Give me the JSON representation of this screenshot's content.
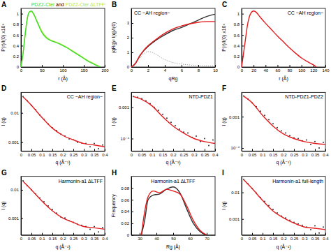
{
  "chart_data": [
    {
      "type": "line",
      "label": "A",
      "x_label": "r (Å)",
      "y_label": "P(r)/I(0) x10³",
      "legend_join": "and",
      "xlim": [
        0,
        200
      ],
      "xticks": [
        0,
        50,
        100,
        150,
        200
      ],
      "ylim": [
        0,
        1.1
      ],
      "yticks": [
        0,
        0.2,
        0.4,
        0.6,
        0.8,
        1
      ],
      "series": [
        {
          "name": "PDZ2-Cter ΔLTFF",
          "color": "#b5e84a",
          "type": "line",
          "x": [
            0,
            5,
            10,
            15,
            20,
            25,
            30,
            40,
            50,
            60,
            70,
            80,
            90,
            100,
            110,
            120,
            130,
            140,
            150,
            160,
            170,
            180,
            190
          ],
          "values": [
            0,
            0.26,
            0.62,
            0.91,
            1.03,
            1.04,
            0.99,
            0.83,
            0.67,
            0.57,
            0.51,
            0.48,
            0.45,
            0.41,
            0.37,
            0.32,
            0.27,
            0.22,
            0.17,
            0.12,
            0.08,
            0.04,
            0
          ]
        },
        {
          "name": "PDZ2-Cter",
          "color": "#3cdc28",
          "type": "line",
          "x": [
            0,
            5,
            10,
            15,
            20,
            25,
            30,
            40,
            50,
            60,
            70,
            80,
            90,
            100,
            110,
            120,
            130,
            140,
            150,
            160,
            170,
            180,
            190
          ],
          "values": [
            0,
            0.25,
            0.6,
            0.9,
            1.03,
            1.05,
            1.0,
            0.82,
            0.65,
            0.55,
            0.5,
            0.47,
            0.44,
            0.4,
            0.36,
            0.31,
            0.26,
            0.21,
            0.16,
            0.11,
            0.07,
            0.03,
            0
          ]
        }
      ]
    },
    {
      "type": "line",
      "label": "B",
      "title": "CC ~AH region~",
      "x_label": "qRg",
      "y_label": "(qRg)² I(q)/I(0)",
      "xlim": [
        0,
        10
      ],
      "xticks": [
        0,
        2,
        4,
        6,
        8,
        10
      ],
      "ylim": [
        0,
        4
      ],
      "yticks": [
        0,
        1,
        2,
        3
      ],
      "series": [
        {
          "color": "#999999",
          "type": "line",
          "line_style": "dotted",
          "x": [
            0,
            0.5,
            1,
            1.5,
            2,
            2.5,
            3,
            4,
            5,
            6,
            7,
            8,
            9,
            10
          ],
          "values": [
            0,
            0.22,
            0.6,
            0.9,
            1.05,
            1.0,
            0.85,
            0.5,
            0.3,
            0.2,
            0.14,
            0.1,
            0.08,
            0.07
          ]
        },
        {
          "color": "#333333",
          "type": "line",
          "x": [
            0,
            0.5,
            1,
            1.5,
            2,
            3,
            4,
            5,
            6,
            7,
            8,
            9,
            10
          ],
          "values": [
            0,
            0.25,
            0.75,
            1.12,
            1.4,
            1.85,
            2.2,
            2.5,
            2.7,
            2.95,
            3.2,
            3.45,
            3.6
          ]
        },
        {
          "color": "#e41a1c",
          "type": "line",
          "x": [
            0,
            0.5,
            1,
            1.5,
            2,
            3,
            4,
            5,
            6,
            7,
            8,
            9,
            10
          ],
          "values": [
            0,
            0.25,
            0.75,
            1.15,
            1.45,
            1.9,
            2.3,
            2.6,
            2.8,
            2.95,
            3.05,
            3.1,
            3.1
          ]
        }
      ]
    },
    {
      "type": "line",
      "label": "C",
      "title": "CC ~AH region~",
      "x_label": "r (Å)",
      "y_label": "P(r)/I(0) x10³",
      "xlim": [
        0,
        140
      ],
      "xticks": [
        0,
        20,
        40,
        60,
        80,
        100,
        120,
        140
      ],
      "ylim": [
        0,
        1.1
      ],
      "yticks": [
        0,
        0.2,
        0.4,
        0.6,
        0.8,
        1
      ],
      "series": [
        {
          "color": "#e41a1c",
          "type": "line",
          "x": [
            0,
            5,
            10,
            15,
            20,
            25,
            30,
            40,
            50,
            60,
            70,
            80,
            90,
            100,
            110,
            120,
            125
          ],
          "values": [
            0,
            0.4,
            0.8,
            1.0,
            1.05,
            1.02,
            0.95,
            0.82,
            0.7,
            0.58,
            0.47,
            0.36,
            0.26,
            0.17,
            0.1,
            0.04,
            0
          ]
        }
      ]
    },
    {
      "type": "scatter",
      "label": "D",
      "title": "CC ~AH region~",
      "x_label": "q (Å⁻¹)",
      "y_label": "I (q)",
      "log": "y",
      "xlim": [
        0,
        0.4
      ],
      "xticks": [
        0,
        0.05,
        0.1,
        0.15,
        0.2,
        0.25,
        0.3,
        0.35,
        0.4
      ],
      "ylim": [
        0.0005,
        0.05
      ],
      "yticks": [
        0.001,
        0.01
      ],
      "series": [
        {
          "color": "#333333",
          "type": "scatter",
          "marker": "circle",
          "x": [
            0.01,
            0.03,
            0.05,
            0.07,
            0.09,
            0.11,
            0.13,
            0.15,
            0.17,
            0.19,
            0.21,
            0.23,
            0.25,
            0.27,
            0.29,
            0.31,
            0.33,
            0.35,
            0.37,
            0.39
          ],
          "values": [
            0.036,
            0.026,
            0.018,
            0.013,
            0.0085,
            0.006,
            0.0042,
            0.0031,
            0.0025,
            0.0019,
            0.0016,
            0.0013,
            0.0012,
            0.001,
            0.00095,
            0.0009,
            0.0007,
            0.0009,
            0.0006,
            0.0008
          ]
        },
        {
          "color": "#e41a1c",
          "type": "line",
          "x": [
            0.01,
            0.05,
            0.1,
            0.15,
            0.2,
            0.25,
            0.3,
            0.35,
            0.4
          ],
          "values": [
            0.035,
            0.018,
            0.007,
            0.003,
            0.0017,
            0.0012,
            0.0009,
            0.0008,
            0.0007
          ]
        }
      ]
    },
    {
      "type": "scatter",
      "label": "E",
      "title": "NTD-PDZ1",
      "x_label": "q (Å⁻¹)",
      "y_label": "I (q)",
      "log": "y",
      "xlim": [
        0,
        0.4
      ],
      "xticks": [
        0,
        0.05,
        0.1,
        0.15,
        0.2,
        0.25,
        0.3,
        0.35,
        0.4
      ],
      "ylim": [
        4e-05,
        0.003
      ],
      "yticks": [
        {
          "value": 0.0001,
          "label": "10⁻⁴"
        },
        0.001
      ],
      "series": [
        {
          "color": "#333333",
          "type": "scatter",
          "marker": "circle",
          "x": [
            0.01,
            0.03,
            0.05,
            0.07,
            0.09,
            0.11,
            0.13,
            0.15,
            0.17,
            0.19,
            0.21,
            0.23,
            0.25,
            0.27,
            0.29,
            0.31,
            0.33,
            0.35,
            0.37,
            0.39
          ],
          "values": [
            0.0022,
            0.0021,
            0.0019,
            0.0016,
            0.0013,
            0.001,
            0.0008,
            0.0006,
            0.00045,
            0.00033,
            0.00026,
            0.0002,
            0.00016,
            0.00015,
            0.00011,
            0.00012,
            8e-05,
            0.0001,
            6e-05,
            9e-05
          ]
        },
        {
          "color": "#e41a1c",
          "type": "line",
          "x": [
            0.01,
            0.05,
            0.1,
            0.15,
            0.2,
            0.25,
            0.3,
            0.35,
            0.4
          ],
          "values": [
            0.0022,
            0.0018,
            0.0011,
            0.0005,
            0.00025,
            0.00015,
            0.0001,
            8e-05,
            7e-05
          ]
        }
      ]
    },
    {
      "type": "scatter",
      "label": "F",
      "title": "NTD-PDZ1-PDZ2",
      "x_label": "q (Å⁻¹)",
      "y_label": "I (q)",
      "log": "y",
      "xlim": [
        0,
        0.4
      ],
      "xticks": [
        0,
        0.05,
        0.1,
        0.15,
        0.2,
        0.25,
        0.3,
        0.35,
        0.4
      ],
      "ylim": [
        8e-05,
        0.006
      ],
      "yticks": [
        {
          "value": 0.0001,
          "label": "10⁻⁴"
        },
        0.001
      ],
      "series": [
        {
          "color": "#333333",
          "type": "scatter",
          "marker": "circle",
          "x": [
            0.01,
            0.03,
            0.05,
            0.07,
            0.09,
            0.11,
            0.13,
            0.15,
            0.17,
            0.19,
            0.21,
            0.23,
            0.25,
            0.27,
            0.29,
            0.31,
            0.33,
            0.35,
            0.37,
            0.39
          ],
          "values": [
            0.0046,
            0.0037,
            0.0028,
            0.0021,
            0.0015,
            0.0011,
            0.0008,
            0.0006,
            0.00045,
            0.00035,
            0.0003,
            0.00025,
            0.00021,
            0.0002,
            0.00017,
            0.00018,
            0.00013,
            0.00016,
            0.0001,
            0.00015
          ]
        },
        {
          "color": "#e41a1c",
          "type": "line",
          "x": [
            0.01,
            0.05,
            0.1,
            0.15,
            0.2,
            0.25,
            0.3,
            0.35,
            0.4
          ],
          "values": [
            0.0045,
            0.0028,
            0.0011,
            0.0005,
            0.00028,
            0.0002,
            0.00016,
            0.00014,
            0.00013
          ]
        }
      ]
    },
    {
      "type": "scatter",
      "label": "G",
      "title": "Harmonin-a1 ΔLTFF",
      "x_label": "q (Å⁻¹)",
      "y_label": "I (q)",
      "log": "y",
      "xlim": [
        0,
        0.4
      ],
      "xticks": [
        0,
        0.05,
        0.1,
        0.15,
        0.2,
        0.25,
        0.3,
        0.35,
        0.4
      ],
      "ylim": [
        0.00025,
        0.03
      ],
      "yticks": [
        0.001,
        0.01
      ],
      "series": [
        {
          "color": "#333333",
          "type": "scatter",
          "marker": "circle",
          "x": [
            0.01,
            0.03,
            0.05,
            0.07,
            0.09,
            0.11,
            0.13,
            0.15,
            0.17,
            0.19,
            0.21,
            0.23,
            0.25,
            0.27,
            0.29,
            0.31,
            0.33,
            0.35,
            0.37,
            0.39
          ],
          "values": [
            0.021,
            0.014,
            0.01,
            0.0072,
            0.0052,
            0.0038,
            0.0027,
            0.002,
            0.0015,
            0.0011,
            0.001,
            0.0008,
            0.0007,
            0.0006,
            0.00055,
            0.0005,
            0.0004,
            0.0005,
            0.00032,
            0.00045
          ]
        },
        {
          "color": "#e41a1c",
          "type": "line",
          "x": [
            0.01,
            0.05,
            0.1,
            0.15,
            0.2,
            0.25,
            0.3,
            0.35,
            0.4
          ],
          "values": [
            0.02,
            0.01,
            0.004,
            0.0018,
            0.001,
            0.0007,
            0.0005,
            0.00045,
            0.0004
          ]
        }
      ]
    },
    {
      "type": "line",
      "label": "H",
      "title": "Harmonin-a1 ΔLTFF",
      "x_label": "Rg (Å)",
      "y_label": "Frequency",
      "xlim": [
        25,
        75
      ],
      "xticks": [
        30,
        40,
        50,
        60,
        70
      ],
      "ylim": [
        0,
        0.1
      ],
      "yticks": [
        0,
        0.02,
        0.04,
        0.06,
        0.08
      ],
      "series": [
        {
          "color": "#333333",
          "type": "line",
          "x": [
            31,
            33,
            35,
            38,
            42,
            46,
            50,
            54,
            58,
            62,
            66,
            70
          ],
          "values": [
            0,
            0.025,
            0.06,
            0.068,
            0.07,
            0.078,
            0.082,
            0.072,
            0.045,
            0.02,
            0.006,
            0
          ]
        },
        {
          "color": "#e41a1c",
          "type": "line",
          "x": [
            31,
            33,
            35,
            38,
            42,
            46,
            50,
            54,
            58,
            62,
            66,
            70
          ],
          "values": [
            0,
            0.04,
            0.065,
            0.075,
            0.072,
            0.078,
            0.075,
            0.07,
            0.05,
            0.025,
            0.008,
            0
          ]
        }
      ]
    },
    {
      "type": "scatter",
      "label": "I",
      "title": "Harmonin-a1 full-length",
      "x_label": "q (Å⁻¹)",
      "y_label": "I (q)",
      "log": "y",
      "xlim": [
        0,
        0.4
      ],
      "xticks": [
        0,
        0.05,
        0.1,
        0.15,
        0.2,
        0.25,
        0.3,
        0.35,
        0.4
      ],
      "ylim": [
        0.00025,
        0.04
      ],
      "yticks": [
        0.001,
        0.01
      ],
      "series": [
        {
          "color": "#333333",
          "type": "scatter",
          "marker": "circle",
          "x": [
            0.01,
            0.03,
            0.05,
            0.07,
            0.09,
            0.11,
            0.13,
            0.15,
            0.17,
            0.19,
            0.21,
            0.23,
            0.25,
            0.27,
            0.29,
            0.31,
            0.33,
            0.35,
            0.37,
            0.39
          ],
          "values": [
            0.031,
            0.021,
            0.014,
            0.0095,
            0.0065,
            0.0046,
            0.0032,
            0.0023,
            0.0017,
            0.0013,
            0.0011,
            0.0009,
            0.00075,
            0.00065,
            0.00058,
            0.0005,
            0.0004,
            0.00055,
            0.0003,
            0.0005
          ]
        },
        {
          "color": "#e41a1c",
          "type": "line",
          "x": [
            0.01,
            0.05,
            0.1,
            0.15,
            0.2,
            0.25,
            0.3,
            0.35,
            0.4
          ],
          "values": [
            0.03,
            0.014,
            0.005,
            0.002,
            0.0011,
            0.0007,
            0.0005,
            0.00045,
            0.0004
          ]
        }
      ]
    }
  ]
}
